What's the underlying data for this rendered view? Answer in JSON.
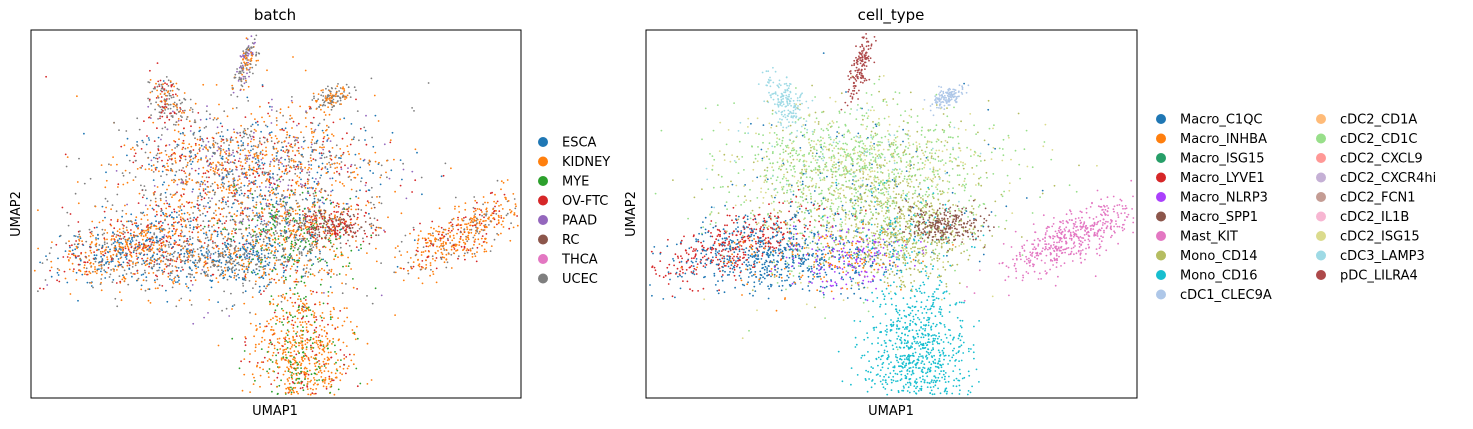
{
  "chart_data": [
    {
      "type": "scatter",
      "title": "batch",
      "xlabel": "UMAP1",
      "ylabel": "UMAP2",
      "grid": false,
      "ticks": "none",
      "legend_placement": "right",
      "legend": [
        {
          "name": "ESCA",
          "color": "#1f77b4"
        },
        {
          "name": "KIDNEY",
          "color": "#ff7f0e"
        },
        {
          "name": "MYE",
          "color": "#2ca02c"
        },
        {
          "name": "OV-FTC",
          "color": "#d62728"
        },
        {
          "name": "PAAD",
          "color": "#9467bd"
        },
        {
          "name": "RC",
          "color": "#8c564b"
        },
        {
          "name": "THCA",
          "color": "#e377c2"
        },
        {
          "name": "UCEC",
          "color": "#7f7f7f"
        }
      ]
    },
    {
      "type": "scatter",
      "title": "cell_type",
      "xlabel": "UMAP1",
      "ylabel": "UMAP2",
      "grid": false,
      "ticks": "none",
      "legend_placement": "right",
      "legend_columns": 2,
      "legend": [
        {
          "name": "Macro_C1QC",
          "color": "#1f77b4"
        },
        {
          "name": "Macro_INHBA",
          "color": "#ff7f0e"
        },
        {
          "name": "Macro_ISG15",
          "color": "#279e68"
        },
        {
          "name": "Macro_LYVE1",
          "color": "#d62728"
        },
        {
          "name": "Macro_NLRP3",
          "color": "#aa40fc"
        },
        {
          "name": "Macro_SPP1",
          "color": "#8c564b"
        },
        {
          "name": "Mast_KIT",
          "color": "#e377c2"
        },
        {
          "name": "Mono_CD14",
          "color": "#b5bd61"
        },
        {
          "name": "Mono_CD16",
          "color": "#17becf"
        },
        {
          "name": "cDC1_CLEC9A",
          "color": "#aec7e8"
        },
        {
          "name": "cDC2_CD1A",
          "color": "#ffbb78"
        },
        {
          "name": "cDC2_CD1C",
          "color": "#98df8a"
        },
        {
          "name": "cDC2_CXCL9",
          "color": "#ff9896"
        },
        {
          "name": "cDC2_CXCR4hi",
          "color": "#c5b0d5"
        },
        {
          "name": "cDC2_FCN1",
          "color": "#c49c94"
        },
        {
          "name": "cDC2_IL1B",
          "color": "#f7b6d2"
        },
        {
          "name": "cDC2_ISG15",
          "color": "#dbdb8d"
        },
        {
          "name": "cDC3_LAMP3",
          "color": "#9edae5"
        },
        {
          "name": "pDC_LILRA4",
          "color": "#ad494a"
        }
      ]
    }
  ]
}
